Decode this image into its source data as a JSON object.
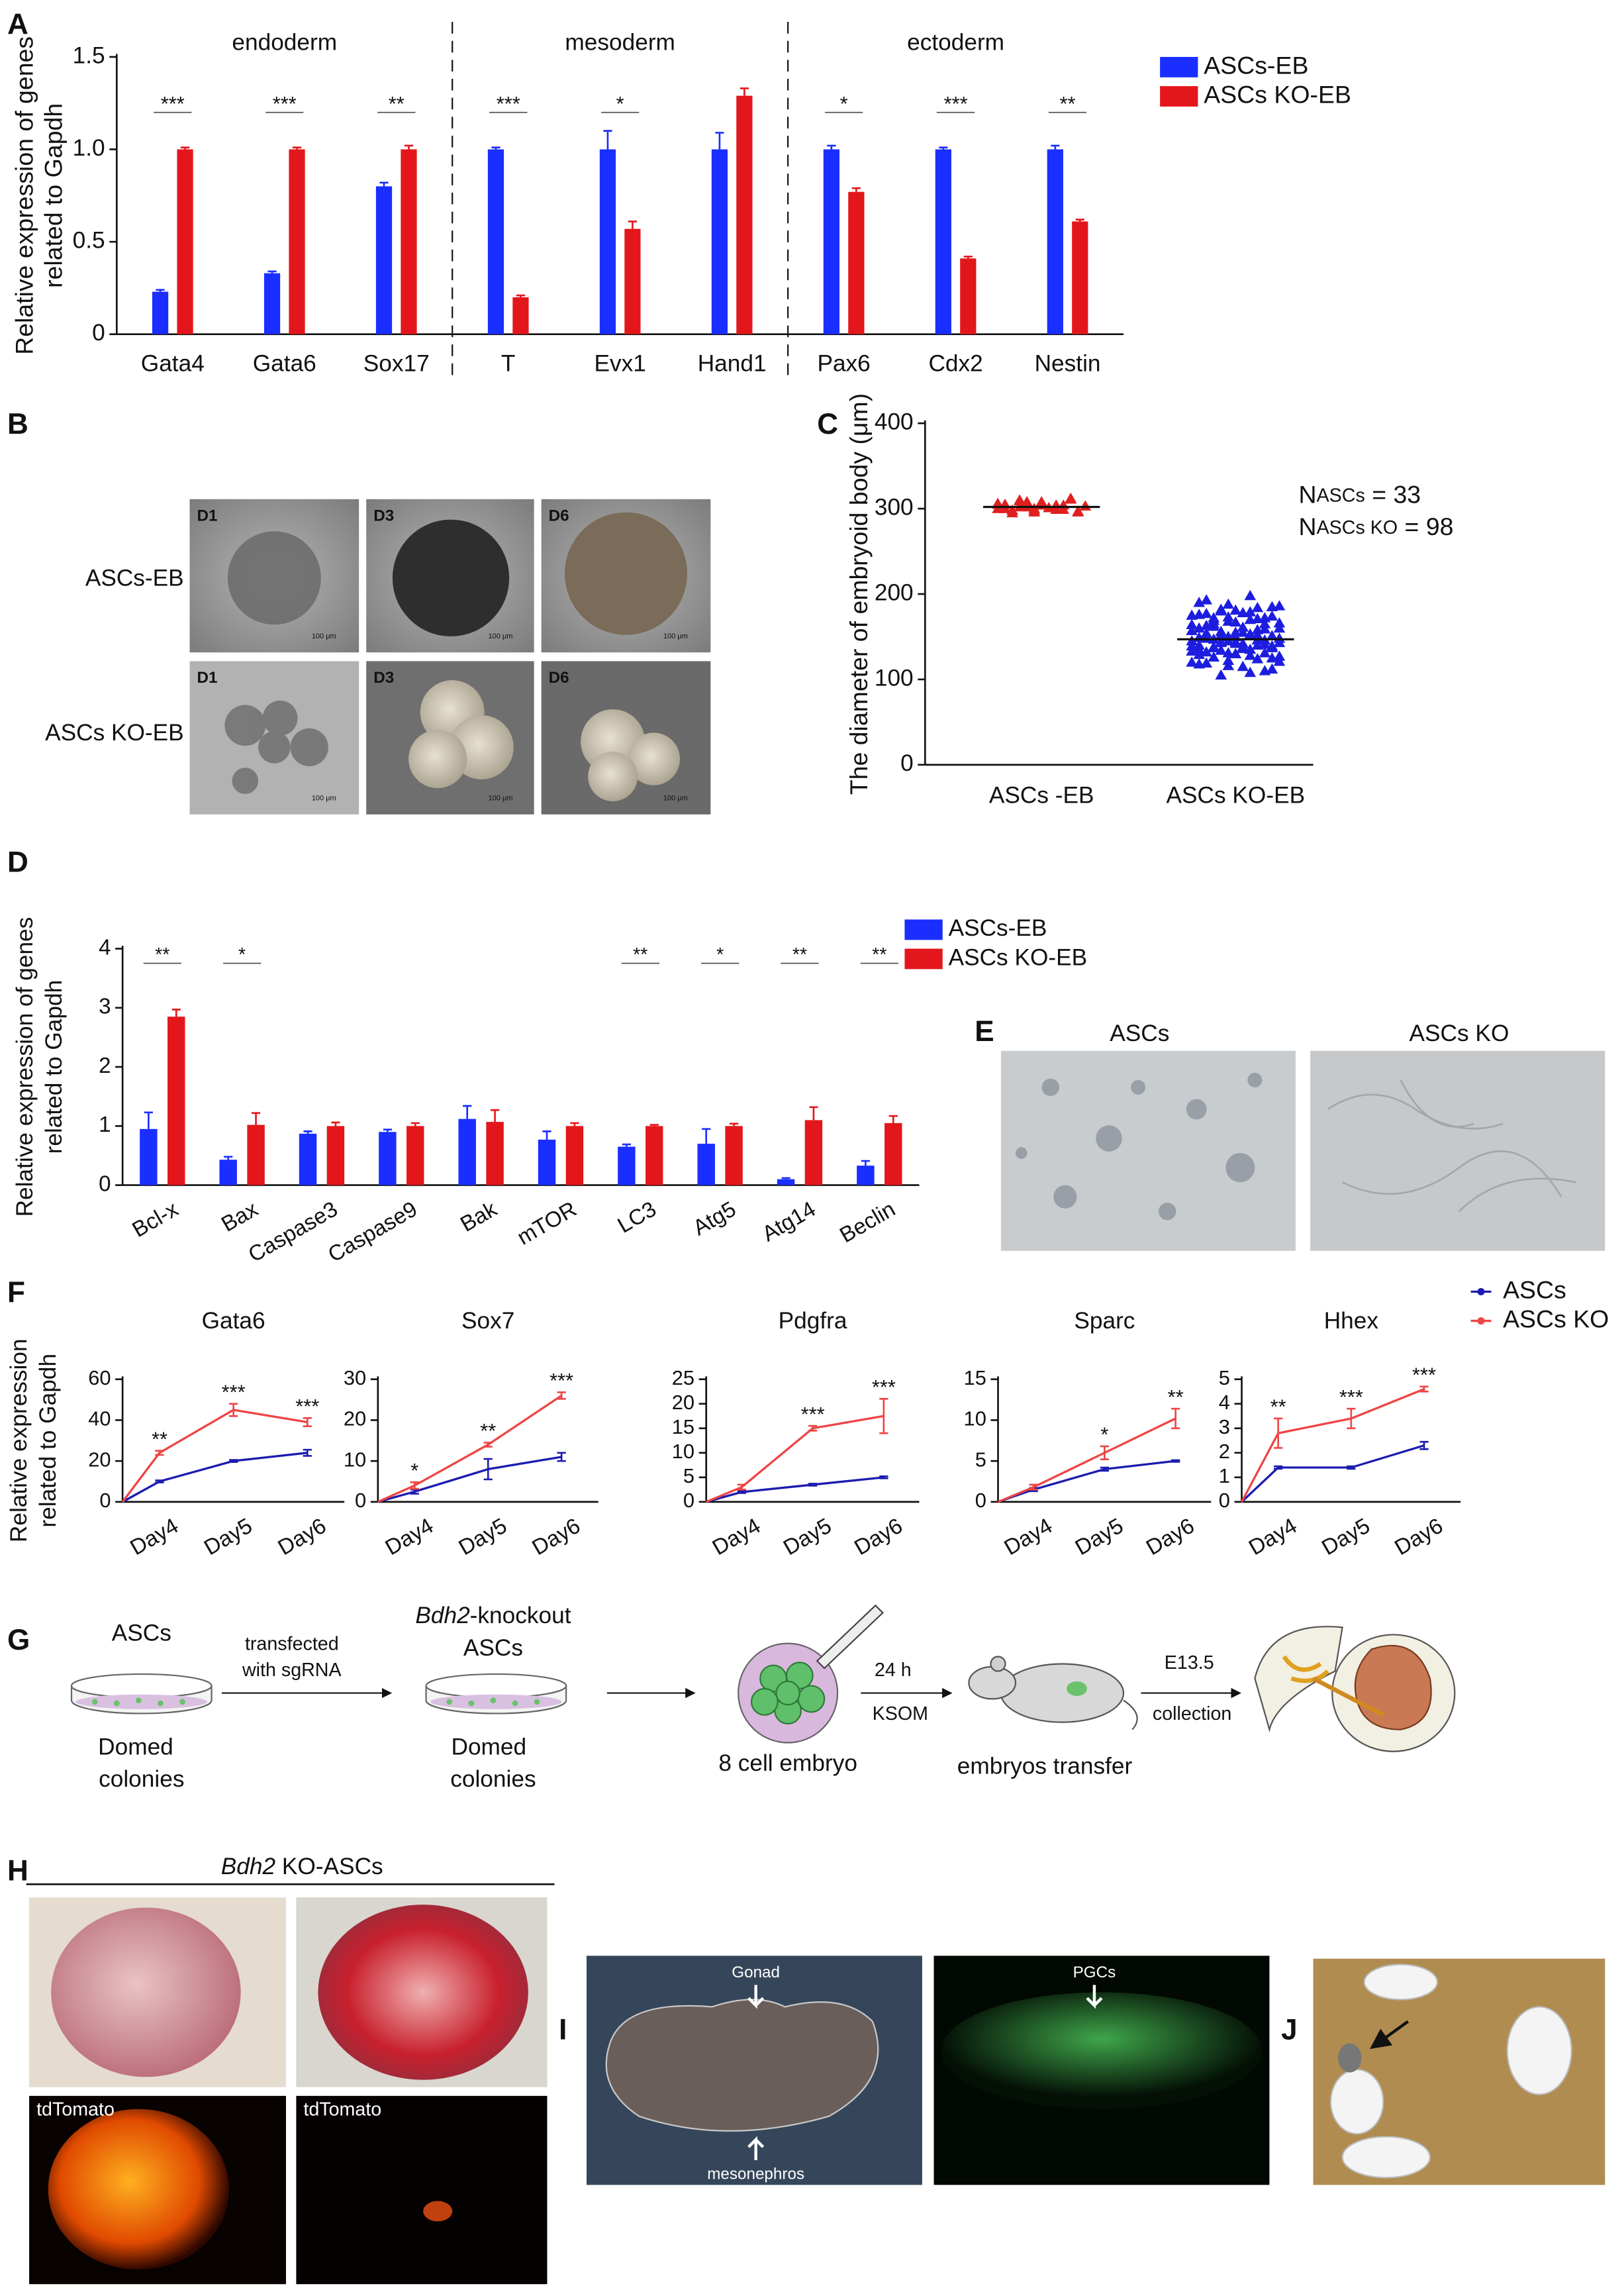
{
  "panel_labels": [
    "A",
    "B",
    "C",
    "D",
    "E",
    "F",
    "G",
    "H",
    "I",
    "J"
  ],
  "chart_data": [
    {
      "type": "bar",
      "ylabel": [
        "Relative expression of genes",
        "related to Gapdh"
      ],
      "groups": [
        "endoderm",
        "mesoderm",
        "ectoderm"
      ],
      "categories": [
        "Gata4",
        "Gata6",
        "Sox17",
        "T",
        "Evx1",
        "Hand1",
        "Pax6",
        "Cdx2",
        "Nestin"
      ],
      "series": [
        {
          "name": "ASCs-EB",
          "color": "#1a2eff",
          "values": [
            0.23,
            0.33,
            0.8,
            1.0,
            1.0,
            1.0,
            1.0,
            1.0,
            1.0
          ],
          "errors": [
            0.01,
            0.01,
            0.02,
            0.01,
            0.1,
            0.09,
            0.02,
            0.01,
            0.02
          ]
        },
        {
          "name": "ASCs KO-EB",
          "color": "#e3171b",
          "values": [
            1.0,
            1.0,
            1.0,
            0.2,
            0.57,
            1.29,
            0.77,
            0.41,
            0.61
          ],
          "errors": [
            0.01,
            0.01,
            0.02,
            0.01,
            0.04,
            0.04,
            0.02,
            0.01,
            0.01
          ]
        }
      ],
      "significance": [
        "***",
        "***",
        "**",
        "***",
        "*",
        null,
        "*",
        "***",
        "**"
      ],
      "ylim": [
        0,
        1.5
      ],
      "yticks": [
        0,
        0.5,
        {
          "value": 1,
          "label": "1.0"
        },
        1.5
      ]
    },
    {
      "type": "scatter",
      "ylabel": "The diameter of embryoid body (μm)",
      "categories": [
        "ASCs -EB",
        "ASCs KO-EB"
      ],
      "series": [
        {
          "color": "#e01f1f",
          "mean": 302,
          "values": [
            305,
            300,
            298,
            310,
            302,
            296,
            308,
            301,
            299,
            304,
            312,
            297,
            303,
            306,
            300,
            295,
            309,
            302,
            298,
            307,
            301,
            304,
            299,
            311,
            296,
            303,
            300,
            305,
            298,
            302,
            308,
            300,
            304
          ]
        },
        {
          "color": "#1d1de0",
          "mean": 147,
          "values": [
            120,
            135,
            150,
            165,
            180,
            145,
            130,
            155,
            170,
            140,
            110,
            125,
            160,
            175,
            190,
            148,
            138,
            152,
            168,
            142,
            115,
            128,
            158,
            172,
            185,
            143,
            133,
            149,
            163,
            137,
            105,
            122,
            155,
            178,
            198,
            146,
            131,
            151,
            166,
            139,
            118,
            132,
            162,
            182,
            188,
            144,
            136,
            153,
            171,
            141,
            112,
            127,
            157,
            176,
            193,
            147,
            134,
            150,
            167,
            138,
            108,
            124,
            159,
            174,
            186,
            145,
            129,
            154,
            169,
            143,
            116,
            130,
            161,
            179,
            184,
            146,
            137,
            148,
            164,
            140,
            119,
            126,
            156,
            173,
            181,
            142,
            135,
            152,
            165,
            139,
            121,
            133,
            160,
            177,
            172,
            144,
            131,
            150
          ]
        }
      ],
      "annotations": [
        {
          "text": "N",
          "sub": "ASCs",
          "rest": " = 33"
        },
        {
          "text": "N",
          "sub": "ASCs KO",
          "rest": " = 98"
        }
      ],
      "ylim": [
        0,
        400
      ],
      "yticks": [
        0,
        100,
        200,
        300,
        400
      ]
    },
    {
      "type": "bar",
      "ylabel": [
        "Relative expression of genes",
        "related to Gapdh"
      ],
      "categories": [
        "Bcl-x",
        "Bax",
        "Caspase3",
        "Caspase9",
        "Bak",
        "mTOR",
        "LC3",
        "Atg5",
        "Atg14",
        "Beclin"
      ],
      "series": [
        {
          "name": "ASCs-EB",
          "color": "#1a2eff",
          "values": [
            0.95,
            0.43,
            0.87,
            0.9,
            1.12,
            0.77,
            0.65,
            0.7,
            0.1,
            0.33
          ],
          "errors": [
            0.28,
            0.05,
            0.04,
            0.04,
            0.22,
            0.14,
            0.04,
            0.25,
            0.02,
            0.08
          ]
        },
        {
          "name": "ASCs KO-EB",
          "color": "#e3171b",
          "values": [
            2.85,
            1.02,
            1.0,
            1.0,
            1.07,
            1.0,
            1.0,
            1.0,
            1.1,
            1.05
          ],
          "errors": [
            0.12,
            0.2,
            0.06,
            0.05,
            0.2,
            0.05,
            0.02,
            0.04,
            0.22,
            0.12
          ]
        }
      ],
      "significance": [
        "**",
        "*",
        null,
        null,
        null,
        null,
        "**",
        "*",
        "**",
        "**"
      ],
      "ylim": [
        0,
        4
      ],
      "yticks": [
        0,
        1,
        2,
        3,
        4
      ]
    },
    {
      "type": "line",
      "ylabel": [
        "Relative expression",
        "related to Gapdh"
      ],
      "categories": [
        null,
        "Day4",
        "Day5",
        "Day6"
      ],
      "series": [
        {
          "name": "ASCs",
          "color": "#1c1cb0"
        },
        {
          "name": "ASCs KO",
          "color": "#ee4545"
        }
      ],
      "subplots": [
        {
          "title": "Gata6",
          "ylim": [
            0,
            60
          ],
          "yticks": [
            0,
            20,
            40,
            60
          ],
          "values": [
            [
              0,
              10,
              20,
              24
            ],
            [
              0,
              24,
              45,
              39
            ]
          ],
          "errors": [
            [
              0,
              0.5,
              0.5,
              1.5
            ],
            [
              0,
              1,
              3,
              2
            ]
          ],
          "significance": [
            null,
            "**",
            "***",
            "***"
          ]
        },
        {
          "title": "Sox7",
          "ylim": [
            0,
            30
          ],
          "yticks": [
            0,
            10,
            20,
            30
          ],
          "values": [
            [
              0,
              2.5,
              8,
              11
            ],
            [
              0,
              4,
              14,
              26
            ]
          ],
          "errors": [
            [
              0,
              0.5,
              2.5,
              1
            ],
            [
              0,
              0.8,
              0.5,
              0.8
            ]
          ],
          "significance": [
            null,
            "*",
            "**",
            "***"
          ]
        },
        {
          "title": "Pdgfra",
          "ylim": [
            0,
            25
          ],
          "yticks": [
            0,
            5,
            10,
            15,
            20,
            25
          ],
          "values": [
            [
              0,
              2,
              3.5,
              5
            ],
            [
              0,
              3,
              15,
              17.5
            ]
          ],
          "errors": [
            [
              0,
              0.2,
              0.2,
              0.2
            ],
            [
              0,
              0.5,
              0.5,
              3.5
            ]
          ],
          "significance": [
            null,
            null,
            "***",
            "***"
          ]
        },
        {
          "title": "Sparc",
          "ylim": [
            0,
            15
          ],
          "yticks": [
            0,
            5,
            10,
            15
          ],
          "values": [
            [
              0,
              1.5,
              4,
              5
            ],
            [
              0,
              1.8,
              6,
              10.2
            ]
          ],
          "errors": [
            [
              0,
              0.2,
              0.2,
              0.1
            ],
            [
              0,
              0.3,
              0.8,
              1.2
            ]
          ],
          "significance": [
            null,
            null,
            "*",
            "**"
          ]
        },
        {
          "title": "Hhex",
          "ylim": [
            0,
            5
          ],
          "yticks": [
            0,
            1,
            2,
            3,
            4,
            5
          ],
          "values": [
            [
              0,
              1.4,
              1.4,
              2.3
            ],
            [
              0,
              2.8,
              3.4,
              4.6
            ]
          ],
          "errors": [
            [
              0,
              0.05,
              0.05,
              0.15
            ],
            [
              0,
              0.6,
              0.4,
              0.1
            ]
          ],
          "significance": [
            null,
            "**",
            "***",
            "***"
          ]
        }
      ]
    }
  ],
  "panel_B": {
    "columns": [
      "D1",
      "D3",
      "D6"
    ],
    "rows": [
      "ASCs-EB",
      "ASCs KO-EB"
    ],
    "scale_bar": "100 μm"
  },
  "panel_E": {
    "titles": [
      "ASCs",
      "ASCs KO"
    ]
  },
  "panel_G": {
    "cells": "ASCs",
    "colonies": [
      "Domed",
      "colonies"
    ],
    "transfection": [
      "transfected",
      "with sgRNA"
    ],
    "knockout": {
      "italic": "Bdh2",
      "rest": "-knockout"
    },
    "knockout_cells": "ASCs",
    "embryo": "8 cell embryo",
    "culture": [
      "24 h",
      "KSOM"
    ],
    "transfer": "embryos transfer",
    "stage": "E13.5",
    "collection": "collection"
  },
  "panel_H": {
    "title": {
      "italic": "Bdh2",
      "rest": " KO-ASCs"
    },
    "fluorescence": "tdTomato"
  },
  "panel_I": {
    "labels": [
      "Gonad",
      "PGCs",
      "mesonephros"
    ]
  }
}
